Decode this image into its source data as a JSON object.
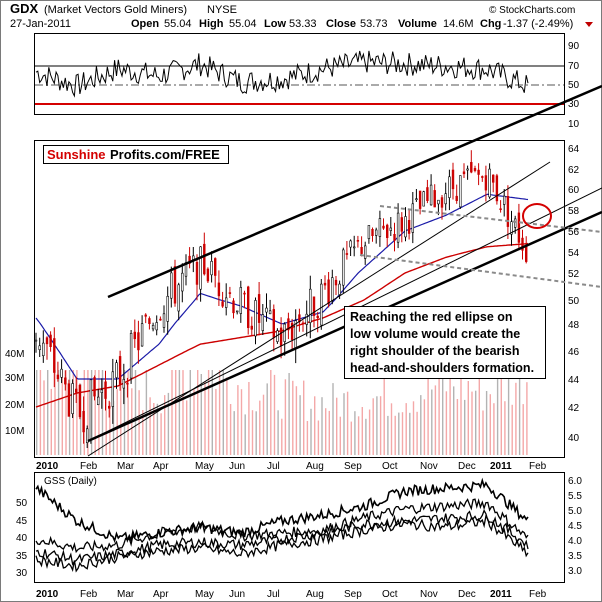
{
  "header": {
    "ticker": "GDX",
    "name": "(Market Vectors Gold Miners)",
    "exchange": "NYSE",
    "date": "27-Jan-2011",
    "open_label": "Open",
    "open": "55.04",
    "high_label": "High",
    "high": "55.04",
    "low_label": "Low",
    "low": "53.33",
    "close_label": "Close",
    "close": "53.73",
    "volume_label": "Volume",
    "volume": "14.6M",
    "chg_label": "Chg",
    "chg": "-1.37 (-2.49%)",
    "copyright": "© StockCharts.com"
  },
  "brand": {
    "part1": "Sunshine",
    "part2": "Profits.com/FREE"
  },
  "annotation": [
    "Reaching the red ellipse on",
    "low volume would create the",
    "right shoulder of the bearish",
    "head-and-shoulders formation."
  ],
  "lower_panel_label": "GSS (Daily)",
  "months": [
    "2010",
    "Feb",
    "Mar",
    "Apr",
    "May",
    "Jun",
    "Jul",
    "Aug",
    "Sep",
    "Oct",
    "Nov",
    "Dec",
    "2011",
    "Feb"
  ],
  "rsi_ticks": [
    "90",
    "70",
    "50",
    "30",
    "10"
  ],
  "price_ticks": [
    "64",
    "62",
    "60",
    "58",
    "56",
    "54",
    "52",
    "50",
    "48",
    "46",
    "44",
    "42",
    "40"
  ],
  "volume_ticks": [
    "40M",
    "30M",
    "20M",
    "10M"
  ],
  "gss_ticks": [
    "6.0",
    "5.5",
    "5.0",
    "4.5",
    "4.0",
    "3.5",
    "3.0"
  ],
  "gss_left_ticks": [
    "50",
    "45",
    "40",
    "35",
    "30"
  ],
  "colors": {
    "rsi_line": "#000000",
    "rsi_threshold": "#d40000",
    "up_candle": "#000000",
    "down_candle": "#cc0000",
    "ma50": "#1a1aa8",
    "ma200": "#cc0000",
    "volume_bar": "#f4a8a8",
    "volume_bar_dark": "#b3b3b3",
    "ellipse": "#d40000",
    "trendline": "#000000",
    "neckline": "#888888"
  },
  "chart_data": [
    {
      "type": "line",
      "panel": "RSI",
      "ylim": [
        10,
        90
      ],
      "reference_lines": [
        70,
        50,
        30
      ],
      "x": [
        "2010-01",
        "2010-02",
        "2010-03",
        "2010-04",
        "2010-05",
        "2010-06",
        "2010-07",
        "2010-08",
        "2010-09",
        "2010-10",
        "2010-11",
        "2010-12",
        "2011-01"
      ],
      "values": [
        52,
        38,
        55,
        48,
        60,
        42,
        45,
        55,
        62,
        60,
        58,
        55,
        38
      ]
    },
    {
      "type": "candlestick",
      "panel": "price",
      "ylim": [
        39,
        65
      ],
      "x": [
        "2010-01",
        "2010-02",
        "2010-03",
        "2010-04",
        "2010-05",
        "2010-06",
        "2010-07",
        "2010-08",
        "2010-09",
        "2010-10",
        "2010-11",
        "2010-12",
        "2011-01"
      ],
      "close": [
        47.5,
        41.5,
        44,
        49.5,
        53,
        49.5,
        47,
        50.5,
        55,
        57,
        60,
        61.5,
        54
      ],
      "ma50": [
        48.5,
        44,
        44,
        46.5,
        50.5,
        49.5,
        48,
        49,
        52.5,
        56,
        57.5,
        59.5,
        59
      ],
      "ma200": [
        42,
        43,
        43.5,
        45,
        46.5,
        47,
        47.5,
        48.5,
        50,
        52,
        53.5,
        54.5,
        54.8
      ],
      "annotated_target_price": 57.5
    },
    {
      "type": "bar",
      "panel": "volume",
      "ylim": [
        0,
        45
      ],
      "x": [
        "2010-01",
        "2010-02",
        "2010-03",
        "2010-04",
        "2010-05",
        "2010-06",
        "2010-07",
        "2010-08",
        "2010-09",
        "2010-10",
        "2010-11",
        "2010-12",
        "2011-01"
      ],
      "values": [
        22,
        26,
        18,
        16,
        24,
        17,
        15,
        13,
        14,
        15,
        18,
        16,
        20
      ]
    },
    {
      "type": "line",
      "panel": "GSS (Daily)",
      "ylim": [
        2.9,
        6.1
      ],
      "x": [
        "2010-01",
        "2010-02",
        "2010-03",
        "2010-04",
        "2010-05",
        "2010-06",
        "2010-07",
        "2010-08",
        "2010-09",
        "2010-10",
        "2010-11",
        "2010-12",
        "2011-01"
      ],
      "series": [
        {
          "values": [
            5.7,
            4.6,
            4.0,
            4.2,
            4.4,
            4.2,
            4.6,
            4.8,
            5.1,
            5.6,
            5.7,
            5.8,
            4.6
          ]
        },
        {
          "values": [
            4.0,
            3.7,
            3.8,
            4.2,
            4.4,
            4.1,
            4.2,
            4.3,
            4.7,
            5.0,
            5.1,
            5.2,
            4.0
          ]
        },
        {
          "values": [
            3.6,
            3.3,
            3.5,
            3.8,
            3.9,
            3.8,
            4.0,
            4.2,
            4.5,
            4.6,
            4.7,
            4.8,
            3.8
          ]
        },
        {
          "values": [
            3.3,
            3.1,
            3.4,
            3.6,
            3.7,
            3.5,
            3.8,
            4.0,
            4.3,
            4.5,
            4.4,
            4.6,
            3.5
          ]
        }
      ]
    }
  ]
}
